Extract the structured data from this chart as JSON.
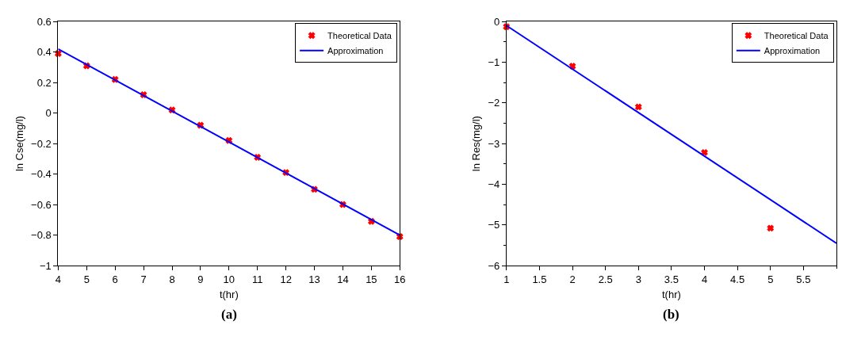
{
  "chart_data": [
    {
      "type": "scatter",
      "xlabel": "t(hr)",
      "ylabel": "ln Cse(mg/l)",
      "annotations": [
        "(a)"
      ],
      "xlim": [
        4,
        16
      ],
      "ylim": [
        -1,
        0.6
      ],
      "xticks": [
        4,
        5,
        6,
        7,
        8,
        9,
        10,
        11,
        12,
        13,
        14,
        15,
        16
      ],
      "yticks": [
        -1,
        -0.8,
        -0.6,
        -0.4,
        -0.2,
        0,
        0.2,
        0.4,
        0.6
      ],
      "legend": "top right",
      "series": [
        {
          "name": "Theoretical Data",
          "marker": "cross",
          "color": "#ff0000",
          "x": [
            4,
            5,
            6,
            7,
            8,
            9,
            10,
            11,
            12,
            13,
            14,
            15,
            16
          ],
          "values": [
            0.39,
            0.31,
            0.22,
            0.12,
            0.02,
            -0.08,
            -0.18,
            -0.29,
            -0.39,
            -0.5,
            -0.6,
            -0.71,
            -0.81
          ]
        },
        {
          "name": "Approximation",
          "type": "line",
          "marker": "none",
          "color": "#0000ff",
          "line_style": "solid",
          "x": [
            4,
            16
          ],
          "values": [
            0.42,
            -0.8
          ]
        }
      ]
    },
    {
      "type": "scatter",
      "xlabel": "t(hr)",
      "ylabel": "ln Res(mg/l)",
      "annotations": [
        "(b)"
      ],
      "xlim": [
        1,
        6
      ],
      "ylim": [
        -6,
        0
      ],
      "xticks": [
        1,
        1.5,
        2,
        2.5,
        3,
        3.5,
        4,
        4.5,
        5,
        5.5
      ],
      "yticks": [
        -6,
        -5,
        -4,
        -3,
        -2,
        -1,
        0
      ],
      "legend": "top right",
      "series": [
        {
          "name": "Theoretical Data",
          "marker": "cross",
          "color": "#ff0000",
          "x": [
            1,
            2,
            3,
            4,
            5
          ],
          "values": [
            -0.13,
            -1.1,
            -2.1,
            -3.22,
            -5.08
          ]
        },
        {
          "name": "Approximation",
          "type": "line",
          "marker": "none",
          "color": "#0000ff",
          "line_style": "solid",
          "x": [
            1,
            6
          ],
          "values": [
            -0.1,
            -5.45
          ]
        }
      ]
    }
  ]
}
